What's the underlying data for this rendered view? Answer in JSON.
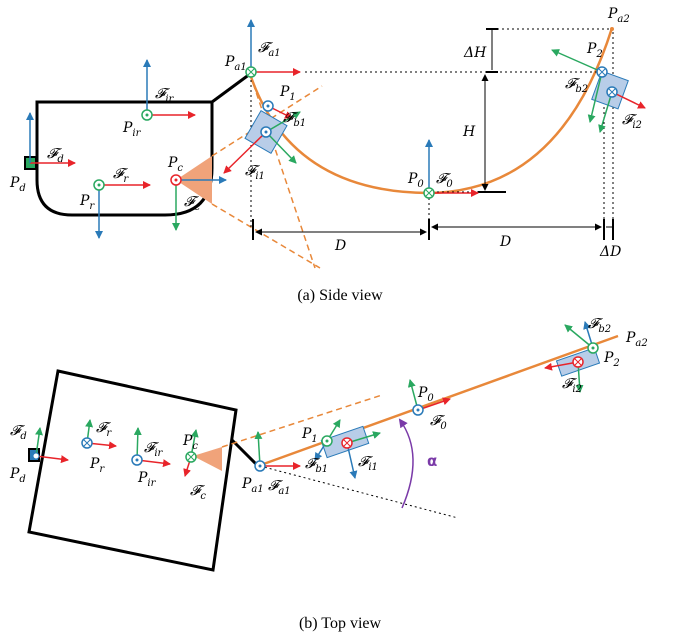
{
  "captions": {
    "side": "(a) Side view",
    "top": "(b) Top view"
  },
  "labels": {
    "Pa1": [
      "P",
      "a1"
    ],
    "Fa1": [
      "𝓕",
      "a1"
    ],
    "Pa2": [
      "P",
      "a2"
    ],
    "P1": [
      "P",
      "1"
    ],
    "Fb1": [
      "𝓕",
      "b1"
    ],
    "Fi1": [
      "𝓕",
      "i1"
    ],
    "P2": [
      "P",
      "2"
    ],
    "Fb2": [
      "𝓕",
      "b2"
    ],
    "Fi2": [
      "𝓕",
      "i2"
    ],
    "P0": [
      "P",
      "0"
    ],
    "F0": [
      "𝓕",
      "0"
    ],
    "Pir": [
      "P",
      "ir"
    ],
    "Fir": [
      "𝓕",
      "ir"
    ],
    "Pd": [
      "P",
      "d"
    ],
    "Fd": [
      "𝓕",
      "d"
    ],
    "Pr": [
      "P",
      "r"
    ],
    "Fr": [
      "𝓕",
      "r"
    ],
    "Pc": [
      "P",
      "c"
    ],
    "Fc": [
      "𝓕",
      "c"
    ],
    "D": "D",
    "H": "H",
    "dH": "ΔH",
    "dD": "ΔD",
    "alpha": "α"
  },
  "colors": {
    "cable": "#e8883a",
    "frame_x": "#e8242a",
    "frame_y": "#2a7ab8",
    "frame_z": "#2aa860",
    "body": "#b8cde8",
    "camera": "#f0a37a",
    "angle": "#7a3aa8"
  }
}
